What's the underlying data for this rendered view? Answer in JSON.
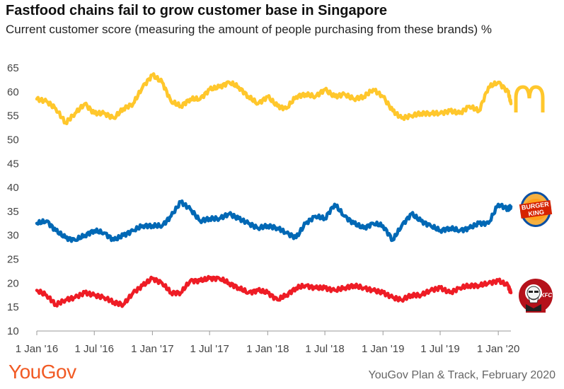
{
  "header": {
    "title": "Fastfood chains fail to grow customer base in Singapore",
    "subtitle": "Current customer score (measuring the amount of people purchasing from these brands) %"
  },
  "footer": {
    "logo_text": "YouGov",
    "source": "YouGov Plan & Track, February 2020"
  },
  "brand_logos": [
    {
      "series": "McDonald's",
      "icon": "mcdonalds-golden-arches-logo",
      "color": "#ffc72c"
    },
    {
      "series": "Burger King",
      "icon": "burger-king-logo",
      "color": "#0066b2"
    },
    {
      "series": "KFC",
      "icon": "kfc-colonel-logo",
      "color": "#b5121b"
    }
  ],
  "chart_data": {
    "type": "line",
    "title": "Fastfood chains fail to grow customer base in Singapore",
    "subtitle": "Current customer score (measuring the amount of people purchasing from these brands) %",
    "xlabel": "",
    "ylabel": "",
    "ylim": [
      10,
      65
    ],
    "yticks": [
      "10",
      "15",
      "20",
      "25",
      "30",
      "35",
      "40",
      "45",
      "50",
      "55",
      "60",
      "65"
    ],
    "xlim": [
      "2016-01-01",
      "2020-02-10"
    ],
    "xticks": [
      {
        "date": "2016-01-01",
        "label": "1 Jan '16"
      },
      {
        "date": "2016-07-01",
        "label": "1 Jul '16"
      },
      {
        "date": "2017-01-01",
        "label": "1 Jan '17"
      },
      {
        "date": "2017-07-01",
        "label": "1 Jul '17"
      },
      {
        "date": "2018-01-01",
        "label": "1 Jan '18"
      },
      {
        "date": "2018-07-01",
        "label": "1 Jul '18"
      },
      {
        "date": "2019-01-01",
        "label": "1 Jan '19"
      },
      {
        "date": "2019-07-01",
        "label": "1 Jul '19"
      },
      {
        "date": "2020-01-01",
        "label": "1 Jan '20"
      }
    ],
    "grid": false,
    "legend": "logos at right end of lines",
    "series": [
      {
        "icon": "mcdonalds-logo",
        "color": "#ffc72c",
        "x": [
          "2016-01-01",
          "2016-02-01",
          "2016-03-01",
          "2016-04-01",
          "2016-05-01",
          "2016-06-01",
          "2016-07-01",
          "2016-08-01",
          "2016-09-01",
          "2016-10-01",
          "2016-11-01",
          "2016-12-01",
          "2017-01-01",
          "2017-02-01",
          "2017-03-01",
          "2017-04-01",
          "2017-05-01",
          "2017-06-01",
          "2017-07-01",
          "2017-08-01",
          "2017-09-01",
          "2017-10-01",
          "2017-11-01",
          "2017-12-01",
          "2018-01-01",
          "2018-02-01",
          "2018-03-01",
          "2018-04-01",
          "2018-05-01",
          "2018-06-01",
          "2018-07-01",
          "2018-08-01",
          "2018-09-01",
          "2018-10-01",
          "2018-11-01",
          "2018-12-01",
          "2019-01-01",
          "2019-02-01",
          "2019-03-01",
          "2019-04-01",
          "2019-05-01",
          "2019-06-01",
          "2019-07-01",
          "2019-08-01",
          "2019-09-01",
          "2019-10-01",
          "2019-11-01",
          "2019-12-01",
          "2020-01-01",
          "2020-02-01",
          "2020-02-10"
        ],
        "values": [
          58.5,
          58,
          56.5,
          53.5,
          55.5,
          57.5,
          55.5,
          55.5,
          54.5,
          56.5,
          57.5,
          61,
          63.5,
          62,
          58,
          57,
          58.5,
          58.5,
          60.5,
          61,
          62,
          61,
          59,
          57.5,
          59,
          57,
          56.5,
          59,
          59.5,
          59,
          60.5,
          59,
          59.5,
          58.5,
          59,
          60.5,
          59,
          56,
          54.5,
          55,
          55.5,
          55.5,
          55.5,
          56,
          55.5,
          57,
          56,
          61,
          62,
          60,
          57.5
        ]
      },
      {
        "icon": "burger-king-logo",
        "color": "#0068b5",
        "x": [
          "2016-01-01",
          "2016-02-01",
          "2016-03-01",
          "2016-04-01",
          "2016-05-01",
          "2016-06-01",
          "2016-07-01",
          "2016-08-01",
          "2016-09-01",
          "2016-10-01",
          "2016-11-01",
          "2016-12-01",
          "2017-01-01",
          "2017-02-01",
          "2017-03-01",
          "2017-04-01",
          "2017-05-01",
          "2017-06-01",
          "2017-07-01",
          "2017-08-01",
          "2017-09-01",
          "2017-10-01",
          "2017-11-01",
          "2017-12-01",
          "2018-01-01",
          "2018-02-01",
          "2018-03-01",
          "2018-04-01",
          "2018-05-01",
          "2018-06-01",
          "2018-07-01",
          "2018-08-01",
          "2018-09-01",
          "2018-10-01",
          "2018-11-01",
          "2018-12-01",
          "2019-01-01",
          "2019-02-01",
          "2019-03-01",
          "2019-04-01",
          "2019-05-01",
          "2019-06-01",
          "2019-07-01",
          "2019-08-01",
          "2019-09-01",
          "2019-10-01",
          "2019-11-01",
          "2019-12-01",
          "2020-01-01",
          "2020-02-01",
          "2020-02-10"
        ],
        "values": [
          32.5,
          33,
          31,
          29.5,
          29,
          30,
          31,
          30.5,
          29,
          30,
          31,
          32,
          32,
          32,
          34,
          37,
          35.5,
          33,
          33.5,
          33.5,
          34.5,
          33.5,
          32.5,
          31.5,
          32,
          31.5,
          30.5,
          29.5,
          32.5,
          34,
          33.5,
          36.5,
          34,
          32.5,
          31.5,
          32.5,
          32,
          29,
          32,
          34.5,
          33,
          32,
          31,
          31.5,
          31,
          31.5,
          32.5,
          32.5,
          36.5,
          35.5,
          36
        ]
      },
      {
        "icon": "kfc-logo",
        "color": "#ee1c25",
        "x": [
          "2016-01-01",
          "2016-02-01",
          "2016-03-01",
          "2016-04-01",
          "2016-05-01",
          "2016-06-01",
          "2016-07-01",
          "2016-08-01",
          "2016-09-01",
          "2016-10-01",
          "2016-11-01",
          "2016-12-01",
          "2017-01-01",
          "2017-02-01",
          "2017-03-01",
          "2017-04-01",
          "2017-05-01",
          "2017-06-01",
          "2017-07-01",
          "2017-08-01",
          "2017-09-01",
          "2017-10-01",
          "2017-11-01",
          "2017-12-01",
          "2018-01-01",
          "2018-02-01",
          "2018-03-01",
          "2018-04-01",
          "2018-05-01",
          "2018-06-01",
          "2018-07-01",
          "2018-08-01",
          "2018-09-01",
          "2018-10-01",
          "2018-11-01",
          "2018-12-01",
          "2019-01-01",
          "2019-02-01",
          "2019-03-01",
          "2019-04-01",
          "2019-05-01",
          "2019-06-01",
          "2019-07-01",
          "2019-08-01",
          "2019-09-01",
          "2019-10-01",
          "2019-11-01",
          "2019-12-01",
          "2020-01-01",
          "2020-02-01",
          "2020-02-10"
        ],
        "values": [
          18.5,
          17.5,
          15.5,
          16.5,
          17,
          18,
          17.5,
          17,
          16,
          15.5,
          18,
          19.5,
          21,
          20,
          18,
          18,
          20.5,
          20.5,
          21,
          21,
          20,
          19,
          18,
          18.5,
          18,
          16.5,
          17.5,
          19,
          19.5,
          19,
          19,
          18.5,
          19,
          19.5,
          19,
          18.5,
          18,
          17,
          16.5,
          17.5,
          17.5,
          18.5,
          19,
          18,
          19,
          19.5,
          19.5,
          20,
          20.5,
          19.5,
          18
        ]
      }
    ]
  }
}
